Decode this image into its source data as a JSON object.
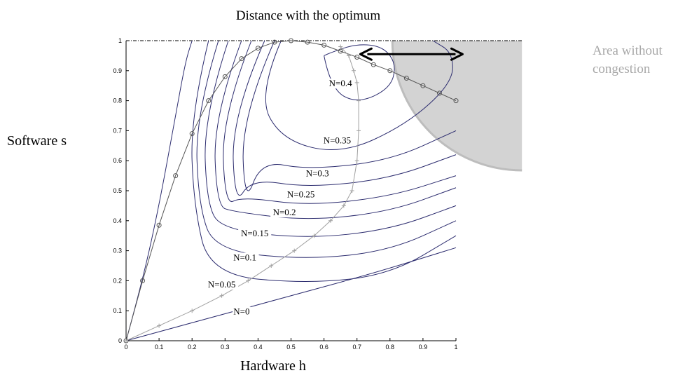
{
  "chart_data": {
    "type": "line",
    "title": "Distance with the optimum",
    "xlabel": "Hardware h",
    "ylabel": "Software s",
    "xlim": [
      0,
      1
    ],
    "ylim": [
      0,
      1
    ],
    "x_ticks": [
      "0",
      "0.1",
      "0.2",
      "0.3",
      "0.4",
      "0.5",
      "0.6",
      "0.7",
      "0.8",
      "0.9",
      "1"
    ],
    "y_ticks": [
      "0",
      "0.1",
      "0.2",
      "0.3",
      "0.4",
      "0.5",
      "0.6",
      "0.7",
      "0.8",
      "0.9",
      "1"
    ],
    "grid": false,
    "contour_levels": [
      0,
      0.05,
      0.1,
      0.15,
      0.2,
      0.25,
      0.3,
      0.35,
      0.4
    ],
    "contour_labels": [
      {
        "text": "N=0",
        "x": 0.35,
        "y": 0.09
      },
      {
        "text": "N=0.05",
        "x": 0.29,
        "y": 0.18
      },
      {
        "text": "N=0.1",
        "x": 0.36,
        "y": 0.27
      },
      {
        "text": "N=0.15",
        "x": 0.39,
        "y": 0.35
      },
      {
        "text": "N=0.2",
        "x": 0.48,
        "y": 0.42
      },
      {
        "text": "N=0.25",
        "x": 0.53,
        "y": 0.48
      },
      {
        "text": "N=0.3",
        "x": 0.58,
        "y": 0.55
      },
      {
        "text": "N=0.35",
        "x": 0.64,
        "y": 0.66
      },
      {
        "text": "N=0.4",
        "x": 0.65,
        "y": 0.85
      }
    ],
    "series": [
      {
        "marker": "o",
        "color": "#555555",
        "x": [
          0,
          0.05,
          0.1,
          0.15,
          0.2,
          0.25,
          0.3,
          0.35,
          0.4,
          0.45,
          0.5,
          0.55,
          0.6,
          0.65,
          0.7,
          0.75,
          0.8,
          0.85,
          0.9,
          0.95,
          1.0
        ],
        "y": [
          0,
          0.2,
          0.385,
          0.55,
          0.69,
          0.8,
          0.88,
          0.94,
          0.975,
          0.995,
          1.0,
          0.995,
          0.985,
          0.965,
          0.945,
          0.92,
          0.9,
          0.875,
          0.85,
          0.825,
          0.8
        ]
      },
      {
        "marker": "+",
        "color": "#a0a0a0",
        "x": [
          0,
          0.1,
          0.2,
          0.29,
          0.37,
          0.44,
          0.51,
          0.57,
          0.62,
          0.66,
          0.685,
          0.7,
          0.705,
          0.705,
          0.7,
          0.69,
          0.675,
          0.65
        ],
        "y": [
          0,
          0.05,
          0.1,
          0.15,
          0.2,
          0.25,
          0.3,
          0.35,
          0.4,
          0.45,
          0.5,
          0.6,
          0.7,
          0.8,
          0.86,
          0.9,
          0.95,
          0.98
        ]
      }
    ],
    "annotations": {
      "area_label_line1": "Area without",
      "area_label_line2": "congestion",
      "area_color": "#d3d3d3",
      "arrow": {
        "from_x": 0.71,
        "to_x": 1.02,
        "y": 0.955,
        "color": "#000000"
      }
    },
    "colors": {
      "contour": "#2b2b6e",
      "axis": "#000000",
      "marker_o": "#555555",
      "marker_plus": "#a0a0a0"
    }
  }
}
